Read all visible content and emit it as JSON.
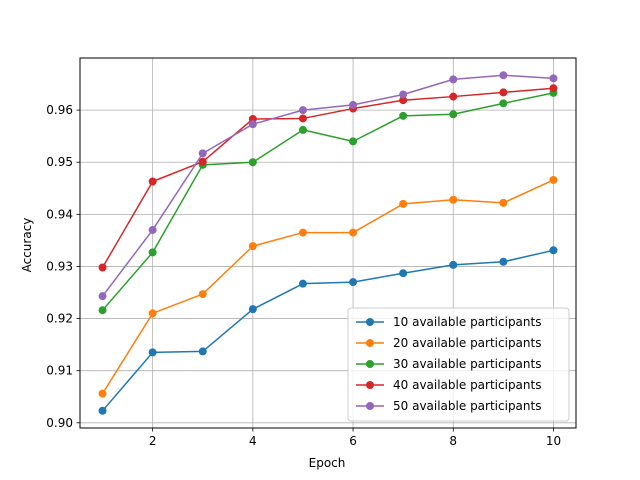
{
  "chart_data": {
    "type": "line",
    "title": "",
    "xlabel": "Epoch",
    "ylabel": "Accuracy",
    "x": [
      1,
      2,
      3,
      4,
      5,
      6,
      7,
      8,
      9,
      10
    ],
    "xlim": [
      0.55,
      10.45
    ],
    "ylim": [
      0.899,
      0.97
    ],
    "xticks": [
      2,
      4,
      6,
      8,
      10
    ],
    "xtick_labels": [
      "2",
      "4",
      "6",
      "8",
      "10"
    ],
    "yticks": [
      0.9,
      0.91,
      0.92,
      0.93,
      0.94,
      0.95,
      0.96
    ],
    "ytick_labels": [
      "0.90",
      "0.91",
      "0.92",
      "0.93",
      "0.94",
      "0.95",
      "0.96"
    ],
    "grid": true,
    "legend_position": "lower-right",
    "series": [
      {
        "name": "10 available participants",
        "color": "#1f77b4",
        "values": [
          0.9023,
          0.9135,
          0.9137,
          0.9218,
          0.9267,
          0.927,
          0.9287,
          0.9303,
          0.9309,
          0.9331
        ]
      },
      {
        "name": "20 available participants",
        "color": "#ff7f0e",
        "values": [
          0.9056,
          0.921,
          0.9247,
          0.9339,
          0.9365,
          0.9365,
          0.942,
          0.9428,
          0.9422,
          0.9466
        ]
      },
      {
        "name": "30 available participants",
        "color": "#2ca02c",
        "values": [
          0.9216,
          0.9327,
          0.9495,
          0.95,
          0.9562,
          0.954,
          0.9589,
          0.9592,
          0.9613,
          0.9633
        ]
      },
      {
        "name": "40 available participants",
        "color": "#d62728",
        "values": [
          0.9298,
          0.9463,
          0.9501,
          0.9583,
          0.9584,
          0.9603,
          0.9619,
          0.9626,
          0.9634,
          0.9642
        ]
      },
      {
        "name": "50 available participants",
        "color": "#9467bd",
        "values": [
          0.9243,
          0.937,
          0.9517,
          0.9573,
          0.96,
          0.961,
          0.963,
          0.9659,
          0.9667,
          0.9661
        ]
      }
    ]
  }
}
